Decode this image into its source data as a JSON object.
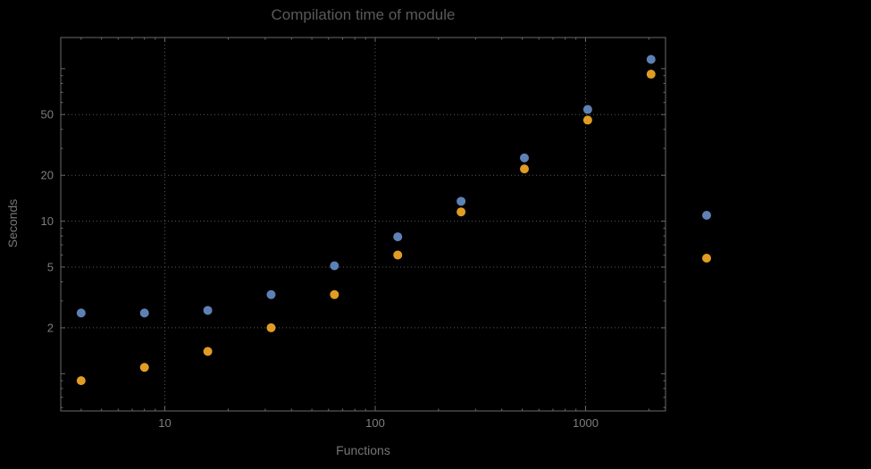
{
  "window": {
    "background": "#000000"
  },
  "chart_data": {
    "type": "scatter",
    "title": "Compilation time of module",
    "xlabel": "Functions",
    "ylabel": "Seconds",
    "x_scale": "log",
    "y_scale": "log",
    "grid": "dotted-major",
    "legend_position": "right-outside",
    "legend_labels_visible": false,
    "x_tick_labels": [
      "10",
      "100",
      "1000"
    ],
    "x_tick_values": [
      10,
      100,
      1000
    ],
    "y_tick_labels": [
      "2",
      "5",
      "10",
      "20",
      "50"
    ],
    "y_tick_values": [
      2,
      5,
      10,
      20,
      50
    ],
    "xlim": [
      3.2,
      2400
    ],
    "ylim": [
      0.57,
      160
    ],
    "x": [
      4,
      8,
      16,
      32,
      64,
      128,
      256,
      512,
      1024,
      2048
    ],
    "series": [
      {
        "name": "series-1-blue",
        "color": "#5e81b5",
        "values": [
          2.5,
          2.5,
          2.6,
          3.3,
          5.1,
          7.9,
          13.5,
          26,
          54,
          115
        ]
      },
      {
        "name": "series-2-orange",
        "color": "#e19c24",
        "values": [
          0.9,
          1.1,
          1.4,
          2.0,
          3.3,
          6.0,
          11.5,
          22,
          46,
          92
        ]
      }
    ],
    "colors": {
      "background": "#000000",
      "title": "#5a5a5a",
      "axis_label": "#767676",
      "tick_label": "#7d7d7d",
      "frame": "#6a6a6a",
      "grid": "#5a5a5a"
    }
  }
}
